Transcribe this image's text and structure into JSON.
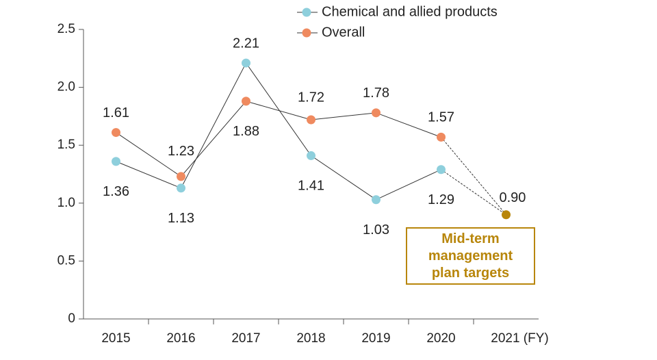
{
  "chart_data": {
    "type": "line",
    "categories": [
      "2015",
      "2016",
      "2017",
      "2018",
      "2019",
      "2020",
      "2021 (FY)"
    ],
    "series": [
      {
        "name": "Chemical and allied products",
        "color": "#8ecfdc",
        "values": [
          1.36,
          1.13,
          2.21,
          1.41,
          1.03,
          1.29,
          null
        ]
      },
      {
        "name": "Overall",
        "color": "#ef8a5f",
        "values": [
          1.61,
          1.23,
          1.88,
          1.72,
          1.78,
          1.57,
          null
        ]
      }
    ],
    "target": {
      "name": "Mid-term management plan targets",
      "color": "#b8860b",
      "values": [
        null,
        null,
        null,
        null,
        null,
        null,
        0.9
      ],
      "value_labels": [
        null,
        null,
        null,
        null,
        null,
        null,
        "0.90"
      ]
    },
    "ylim": [
      0,
      2.5
    ],
    "yticks": [
      0,
      {
        "value": 0.5,
        "label": "0.5"
      },
      {
        "value": 1,
        "label": "1.0"
      },
      {
        "value": 1.5,
        "label": "1.5"
      },
      {
        "value": 2,
        "label": "2.0"
      },
      {
        "value": 2.5,
        "label": "2.5"
      }
    ]
  }
}
